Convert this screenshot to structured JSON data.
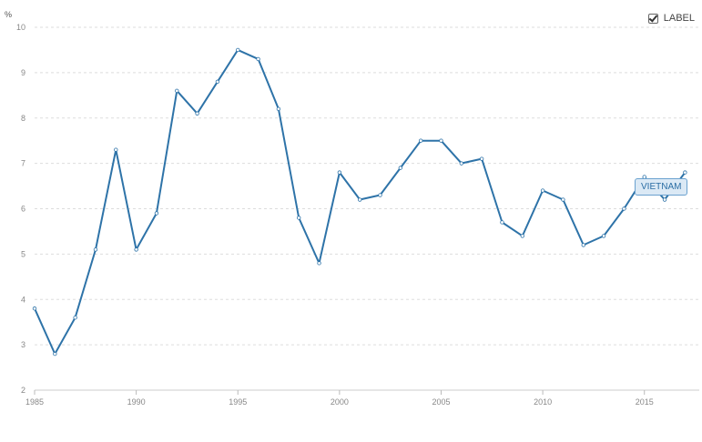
{
  "legend": {
    "label": "LABEL",
    "checked": true
  },
  "chart_data": {
    "type": "line",
    "title": "",
    "xlabel": "",
    "ylabel": "%",
    "xlim": [
      1985,
      2017.7
    ],
    "ylim": [
      2,
      10
    ],
    "y_ticks": [
      "2",
      "3",
      "4",
      "5",
      "6",
      "7",
      "8",
      "9",
      "10"
    ],
    "x_ticks": [
      "1985",
      "1990",
      "1995",
      "2000",
      "2005",
      "2010",
      "2015"
    ],
    "grid": true,
    "series": [
      {
        "name": "VIETNAM",
        "color": "#2e73a8",
        "x": [
          1985,
          1986,
          1987,
          1988,
          1989,
          1990,
          1991,
          1992,
          1993,
          1994,
          1995,
          1996,
          1997,
          1998,
          1999,
          2000,
          2001,
          2002,
          2003,
          2004,
          2005,
          2006,
          2007,
          2008,
          2009,
          2010,
          2011,
          2012,
          2013,
          2014,
          2015,
          2016,
          2017
        ],
        "y": [
          3.8,
          2.8,
          3.6,
          5.1,
          7.3,
          5.1,
          5.9,
          8.6,
          8.1,
          8.8,
          9.5,
          9.3,
          8.2,
          5.8,
          4.8,
          6.8,
          6.2,
          6.3,
          6.9,
          7.5,
          7.5,
          7.0,
          7.1,
          5.7,
          5.4,
          6.4,
          6.2,
          5.2,
          5.4,
          6.0,
          6.7,
          6.2,
          6.8
        ]
      }
    ]
  }
}
